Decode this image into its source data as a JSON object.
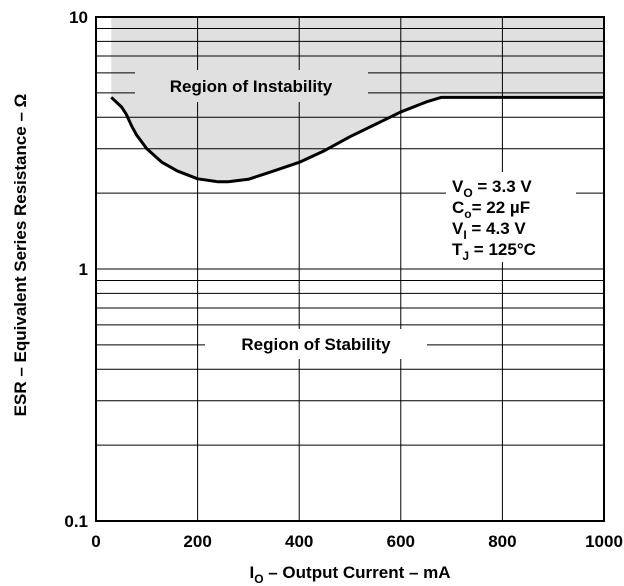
{
  "chart_data": {
    "type": "line",
    "x_scale": "linear",
    "y_scale": "log",
    "xlim": [
      0,
      1000
    ],
    "ylim": [
      0.1,
      10
    ],
    "x_ticks": [
      0,
      200,
      400,
      600,
      800,
      1000
    ],
    "x_tick_labels": [
      "0",
      "200",
      "400",
      "600",
      "800",
      "1000"
    ],
    "y_ticks": [
      0.1,
      1,
      10
    ],
    "y_tick_labels": [
      "0.1",
      "1",
      "10"
    ],
    "xlabel": {
      "prefix": "I",
      "subscript": "O",
      "rest": " – Output Current – mA"
    },
    "ylabel": "ESR – Equivalent Series Resistance – Ω",
    "grid": true,
    "region_labels": {
      "instability": "Region of Instability",
      "stability": "Region of Stability"
    },
    "conditions": [
      {
        "symbol": "V",
        "subscript": "O",
        "text": " = 3.3 V"
      },
      {
        "symbol": "C",
        "subscript": "o",
        "text": "= 22 µF"
      },
      {
        "symbol": "V",
        "subscript": "I",
        "text": " = 4.3 V"
      },
      {
        "symbol": "T",
        "subscript": "J",
        "text": " = 125°C"
      }
    ],
    "shaded_region": "instability",
    "shade_color": "#e0e0e0",
    "series": [
      {
        "x": [
          30,
          50,
          60,
          70,
          80,
          100,
          130,
          160,
          200,
          240,
          260,
          300,
          350,
          400,
          450,
          500,
          550,
          600,
          650,
          680,
          700,
          800,
          900,
          1000
        ],
        "y": [
          4.8,
          4.4,
          4.1,
          3.7,
          3.4,
          3.0,
          2.65,
          2.45,
          2.28,
          2.22,
          2.22,
          2.27,
          2.45,
          2.65,
          2.95,
          3.35,
          3.75,
          4.2,
          4.6,
          4.8,
          4.8,
          4.8,
          4.8,
          4.8
        ]
      }
    ]
  }
}
